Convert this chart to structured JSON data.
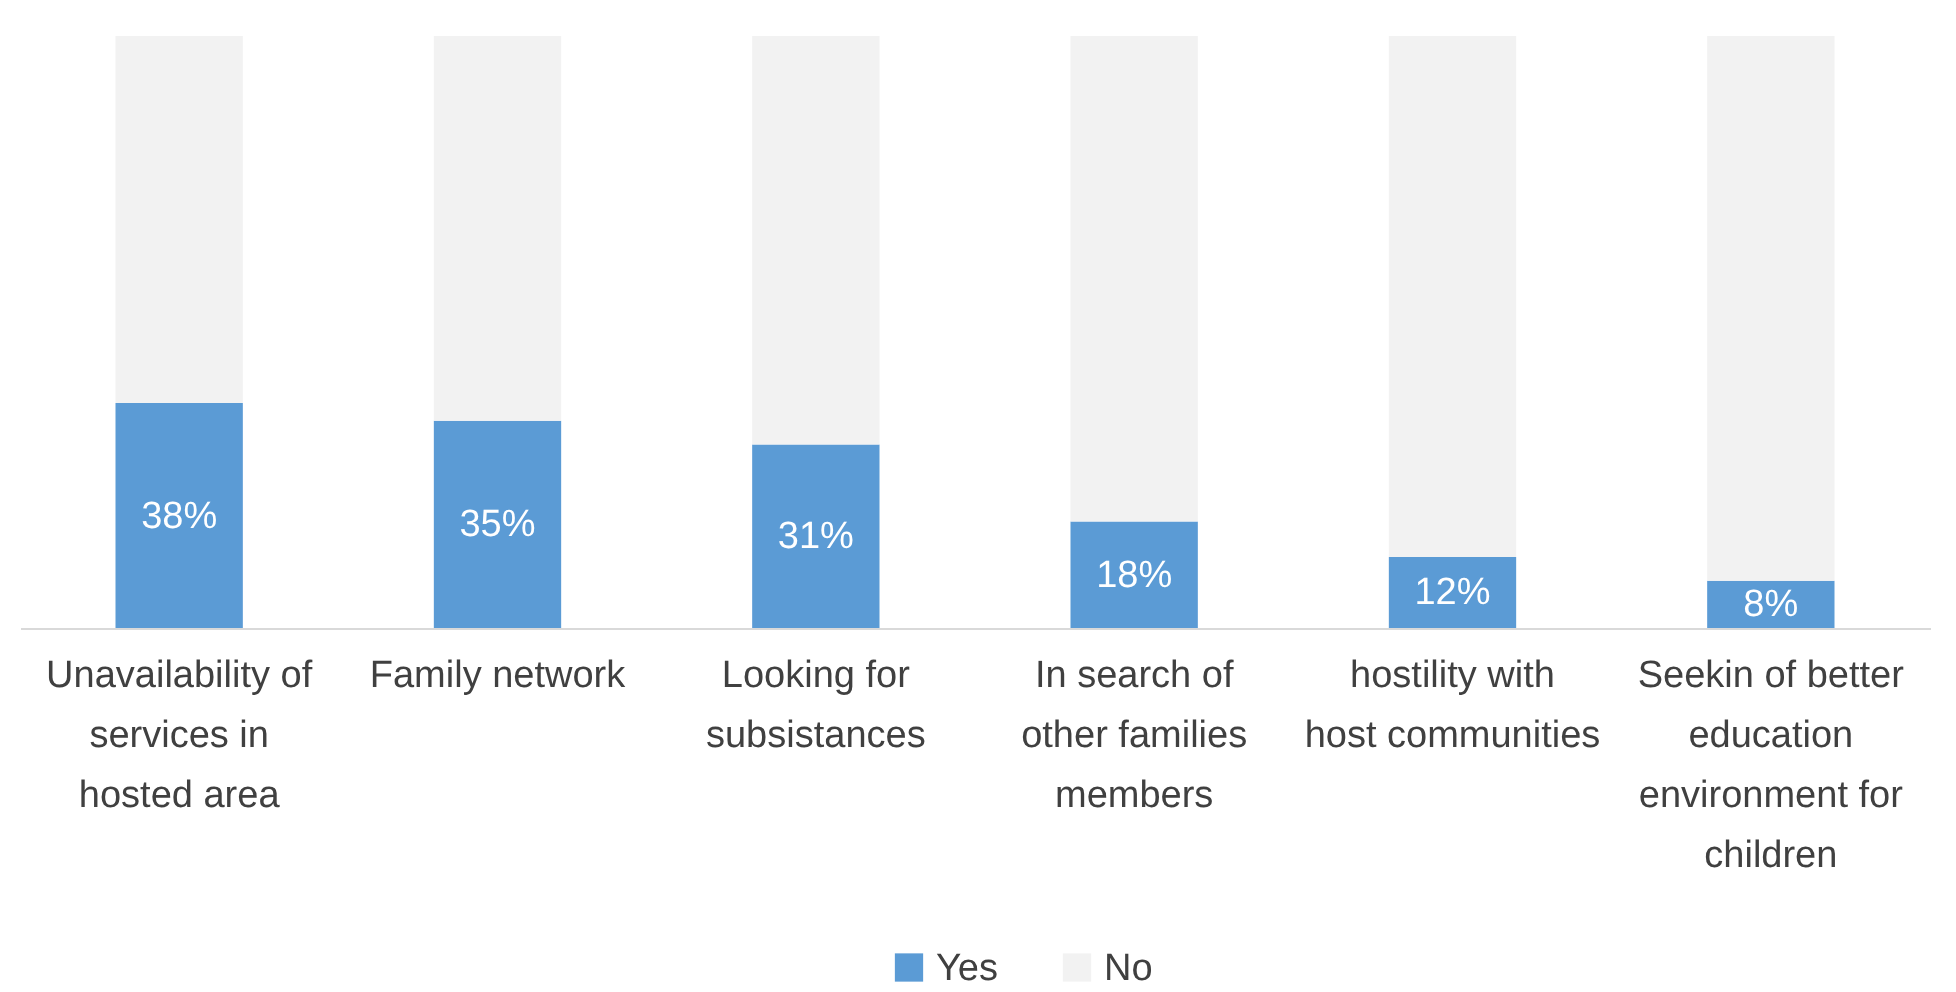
{
  "chart_data": {
    "type": "bar",
    "stacked": true,
    "legend": "bottom",
    "categories": [
      "Unavailability of services in hosted area",
      "Family network",
      "Looking for subsistances",
      "In search of other families members",
      "hostility with host communities",
      "Seekin of better education environment for children"
    ],
    "series": [
      {
        "name": "Yes",
        "color": "#5b9bd5",
        "values": [
          38,
          35,
          31,
          18,
          12,
          8
        ],
        "value_labels": [
          "38%",
          "35%",
          "31%",
          "18%",
          "12%",
          "8%"
        ]
      },
      {
        "name": "No",
        "color": "#f2f2f2",
        "values": [
          62,
          65,
          69,
          82,
          88,
          92
        ]
      }
    ]
  }
}
